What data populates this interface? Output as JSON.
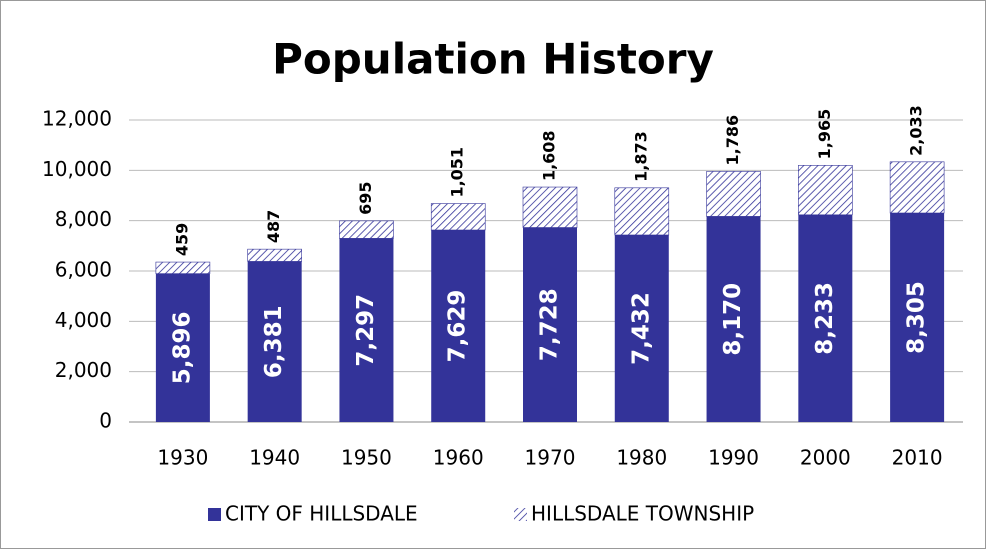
{
  "chart_data": {
    "type": "stacked_bar",
    "title": "Population History",
    "categories": [
      "1930",
      "1940",
      "1950",
      "1960",
      "1970",
      "1980",
      "1990",
      "2000",
      "2010"
    ],
    "series": [
      {
        "name": "CITY OF HILLSDALE",
        "color": "#333399",
        "values": [
          5896,
          6381,
          7297,
          7629,
          7728,
          7432,
          8170,
          8233,
          8305
        ],
        "value_labels": [
          "5,896",
          "6,381",
          "7,297",
          "7,629",
          "7,728",
          "7,432",
          "8,170",
          "8,233",
          "8,305"
        ]
      },
      {
        "name": "HILLSDALE TOWNSHIP",
        "color": "#333399",
        "values": [
          459,
          487,
          695,
          1051,
          1608,
          1873,
          1786,
          1965,
          2033
        ],
        "value_labels": [
          "459",
          "487",
          "695",
          "1,051",
          "1,608",
          "1,873",
          "1,786",
          "1,965",
          "2,033"
        ]
      }
    ],
    "ylim": [
      0,
      12000
    ],
    "yticks": [
      0,
      {
        "value": 2000,
        "label": "2,000"
      },
      {
        "value": 4000,
        "label": "4,000"
      },
      {
        "value": 6000,
        "label": "6,000"
      },
      {
        "value": 8000,
        "label": "8,000"
      },
      {
        "value": 10000,
        "label": "10,000"
      },
      {
        "value": 12000,
        "label": "12,000"
      }
    ],
    "grid": true,
    "legend": "bottom"
  }
}
